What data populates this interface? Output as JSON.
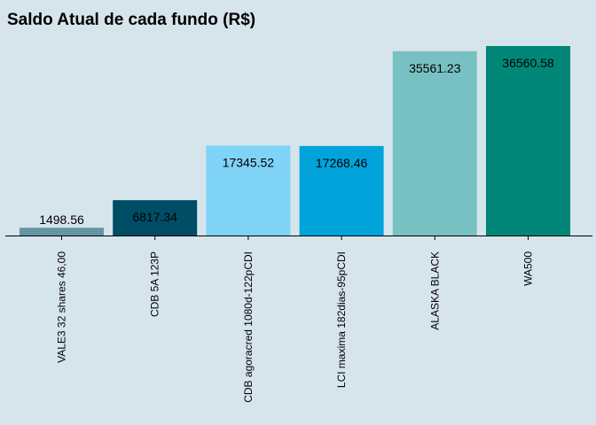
{
  "chart_data": {
    "type": "bar",
    "title": "Saldo Atual de cada fundo (R$)",
    "xlabel": "",
    "ylabel": "",
    "categories": [
      "VALE3 32 shares 46,00",
      "CDB 5A 123P",
      "CDB agoracred 1080d-122pCDI",
      "LCI maxima 182dias-95pCDI",
      "ALASKA BLACK",
      "WA500"
    ],
    "values": [
      1498.56,
      6817.34,
      17345.52,
      17268.46,
      35561.23,
      36560.58
    ],
    "value_labels": [
      "1498.56",
      "6817.34",
      "17345.52",
      "17268.46",
      "35561.23",
      "36560.58"
    ],
    "colors": [
      "#6594a3",
      "#004d66",
      "#7fd3f7",
      "#00a3da",
      "#78c1c2",
      "#008777"
    ],
    "ylim": [
      0,
      36560.58
    ],
    "grid": false,
    "legend": "none"
  }
}
